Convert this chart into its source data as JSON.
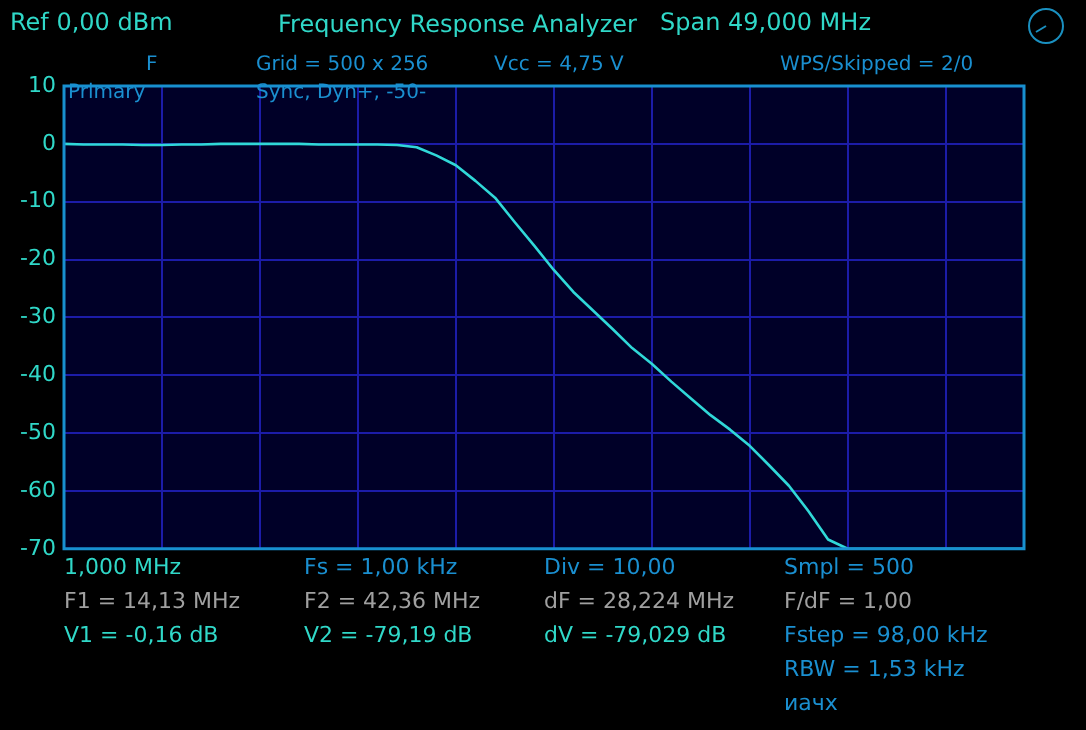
{
  "chart_data": {
    "type": "line",
    "title": "Frequency Response Analyzer",
    "categories": [
      null,
      null,
      null,
      null,
      null,
      null,
      null,
      null,
      null,
      null,
      null,
      null,
      null,
      null,
      null,
      null,
      null,
      null,
      null,
      null,
      null,
      null,
      null,
      null,
      null,
      null,
      null,
      null,
      null,
      null,
      null,
      null,
      null,
      null,
      null,
      null,
      null,
      null,
      null,
      null,
      null,
      null,
      null,
      null,
      null,
      null,
      null,
      null,
      null,
      null
    ],
    "series": [
      {
        "color": "#30d8d8",
        "values": [
          0,
          -0.1,
          -0.1,
          -0.1,
          -0.2,
          -0.2,
          -0.1,
          -0.1,
          0,
          0,
          0,
          0,
          0,
          -0.1,
          -0.1,
          -0.1,
          -0.1,
          -0.2,
          -0.6,
          -2.0,
          -3.7,
          -6.4,
          -9.3,
          -13.5,
          -17.6,
          -21.8,
          -25.6,
          -28.8,
          -32.0,
          -35.3,
          -38.0,
          -41.1,
          -44.0,
          -46.9,
          -49.4,
          -52.2,
          -55.6,
          -59.1,
          -63.5,
          -68.4,
          -70,
          -70,
          -70,
          -70,
          -70,
          -70,
          -70,
          -70,
          -70,
          -70
        ]
      }
    ],
    "ylim": [
      -70,
      10
    ],
    "yticks": [
      10,
      0,
      -10,
      -20,
      -30,
      -40,
      -50,
      -60,
      -70
    ],
    "tick_labels": "y",
    "grid": true,
    "legend": false,
    "marker": "none",
    "line_style": "solid",
    "annotations": [
      "Ref  0,00 dBm",
      "Span 49,000 MHz",
      "F",
      "Primary",
      "Grid = 500 x 256",
      "Sync,  Dyn+,  -50-",
      "Vcc = 4,75 V",
      "WPS/Skipped  = 2/0",
      "1,000 MHz",
      "Fs = 1,00 kHz",
      "Div = 10,00",
      "Smpl = 500",
      "F1 = 14,13 MHz",
      "F2 = 42,36 MHz",
      "dF = 28,224 MHz",
      "F/dF = 1,00",
      "V1 = -0,16 dB",
      "V2 = -79,19 dB",
      "dV = -79,029 dB",
      "Fstep = 98,00 kHz",
      "RBW = 1,53 kHz",
      "иачх"
    ]
  }
}
